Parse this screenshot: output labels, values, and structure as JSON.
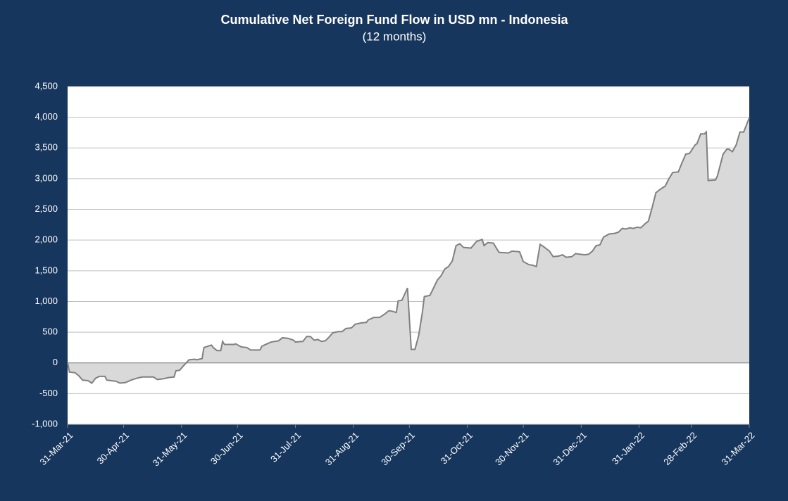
{
  "chart_data": {
    "type": "area",
    "title": "Cumulative Net Foreign Fund Flow in USD mn -  Indonesia",
    "subtitle": "(12 months)",
    "color": "#d9d9d9",
    "line_color": "#808080",
    "grid": true,
    "ylim": [
      -1000,
      4500
    ],
    "yticks": [
      {
        "value": -1000,
        "label": "-1,000"
      },
      -500,
      0,
      500,
      {
        "value": 1000,
        "label": "1,000"
      },
      {
        "value": 1500,
        "label": "1,500"
      },
      {
        "value": 2000,
        "label": "2,000"
      },
      {
        "value": 2500,
        "label": "2,500"
      },
      {
        "value": 3000,
        "label": "3,000"
      },
      {
        "value": 3500,
        "label": "3,500"
      },
      {
        "value": 4000,
        "label": "4,000"
      },
      {
        "value": 4500,
        "label": "4,500"
      }
    ],
    "xlim": [
      "31-Mar-21",
      "31-Mar-22"
    ],
    "xticks": [
      "31-Mar-21",
      "30-Apr-21",
      "31-May-21",
      "30-Jun-21",
      "31-Jul-21",
      "31-Aug-21",
      "30-Sep-21",
      "31-Oct-21",
      "30-Nov-21",
      "31-Dec-21",
      "31-Jan-22",
      "28-Feb-22",
      "31-Mar-22"
    ],
    "x": [
      "31-Mar-21",
      "1-Apr-21",
      "4-Apr-21",
      "6-Apr-21",
      "8-Apr-21",
      "11-Apr-21",
      "13-Apr-21",
      "15-Apr-21",
      "17-Apr-21",
      "20-Apr-21",
      "21-Apr-21",
      "26-Apr-21",
      "28-Apr-21",
      "1-May-21",
      "4-May-21",
      "7-May-21",
      "10-May-21",
      "16-May-21",
      "18-May-21",
      "21-May-21",
      "24-May-21",
      "27-May-21",
      "28-May-21",
      "30-May-21",
      "1-Jun-21",
      "4-Jun-21",
      "7-Jun-21",
      "8-Jun-21",
      "11-Jun-21",
      "12-Jun-21",
      "14-Jun-21",
      "16-Jun-21",
      "17-Jun-21",
      "19-Jun-21",
      "21-Jun-21",
      "22-Jun-21",
      "23-Jun-21",
      "28-Jun-21",
      "29-Jun-21",
      "2-Jul-21",
      "5-Jul-21",
      "7-Jul-21",
      "12-Jul-21",
      "13-Jul-21",
      "15-Jul-21",
      "18-Jul-21",
      "22-Jul-21",
      "24-Jul-21",
      "27-Jul-21",
      "30-Jul-21",
      "31-Jul-21",
      "4-Aug-21",
      "6-Aug-21",
      "8-Aug-21",
      "10-Aug-21",
      "12-Aug-21",
      "14-Aug-21",
      "16-Aug-21",
      "18-Aug-21",
      "20-Aug-21",
      "23-Aug-21",
      "25-Aug-21",
      "27-Aug-21",
      "30-Aug-21",
      "1-Sep-21",
      "4-Sep-21",
      "7-Sep-21",
      "8-Sep-21",
      "11-Sep-21",
      "14-Sep-21",
      "17-Sep-21",
      "19-Sep-21",
      "21-Sep-21",
      "23-Sep-21",
      "24-Sep-21",
      "26-Sep-21",
      "29-Sep-21",
      "1-Oct-21",
      "3-Oct-21",
      "5-Oct-21",
      "7-Oct-21",
      "8-Oct-21",
      "11-Oct-21",
      "12-Oct-21",
      "15-Oct-21",
      "17-Oct-21",
      "19-Oct-21",
      "21-Oct-21",
      "23-Oct-21",
      "25-Oct-21",
      "27-Oct-21",
      "29-Oct-21",
      "2-Nov-21",
      "5-Nov-21",
      "8-Nov-21",
      "9-Nov-21",
      "11-Nov-21",
      "14-Nov-21",
      "17-Nov-21",
      "22-Nov-21",
      "24-Nov-21",
      "28-Nov-21",
      "30-Nov-21",
      "3-Dec-21",
      "5-Dec-21",
      "7-Dec-21",
      "9-Dec-21",
      "11-Dec-21",
      "14-Dec-21",
      "16-Dec-21",
      "19-Dec-21",
      "21-Dec-21",
      "23-Dec-21",
      "26-Dec-21",
      "28-Dec-21",
      "30-Dec-21",
      "2-Jan-22",
      "4-Jan-22",
      "6-Jan-22",
      "8-Jan-22",
      "10-Jan-22",
      "12-Jan-22",
      "15-Jan-22",
      "18-Jan-22",
      "20-Jan-22",
      "22-Jan-22",
      "24-Jan-22",
      "26-Jan-22",
      "28-Jan-22",
      "30-Jan-22",
      "1-Feb-22",
      "3-Feb-22",
      "5-Feb-22",
      "7-Feb-22",
      "9-Feb-22",
      "11-Feb-22",
      "14-Feb-22",
      "16-Feb-22",
      "18-Feb-22",
      "21-Feb-22",
      "23-Feb-22",
      "25-Feb-22",
      "27-Feb-22",
      "2-Mar-22",
      "3-Mar-22",
      "5-Mar-22",
      "7-Mar-22",
      "8-Mar-22",
      "9-Mar-22",
      "13-Mar-22",
      "14-Mar-22",
      "17-Mar-22",
      "19-Mar-22",
      "20-Mar-22",
      "22-Mar-22",
      "24-Mar-22",
      "26-Mar-22",
      "28-Mar-22",
      "31-Mar-22"
    ],
    "values": [
      0,
      -150,
      -160,
      -210,
      -280,
      -290,
      -330,
      -250,
      -220,
      -220,
      -280,
      -300,
      -330,
      -320,
      -280,
      -250,
      -230,
      -230,
      -270,
      -260,
      -240,
      -230,
      -130,
      -120,
      -50,
      50,
      60,
      50,
      70,
      250,
      270,
      290,
      250,
      200,
      200,
      350,
      300,
      300,
      310,
      260,
      250,
      210,
      210,
      270,
      300,
      340,
      360,
      410,
      400,
      370,
      340,
      350,
      430,
      430,
      370,
      380,
      350,
      360,
      420,
      490,
      510,
      510,
      560,
      570,
      630,
      650,
      660,
      700,
      740,
      740,
      800,
      850,
      840,
      820,
      1010,
      1020,
      1220,
      220,
      220,
      450,
      830,
      1080,
      1100,
      1160,
      1350,
      1420,
      1530,
      1570,
      1660,
      1910,
      1940,
      1880,
      1870,
      1980,
      2010,
      1910,
      1960,
      1950,
      1800,
      1790,
      1820,
      1810,
      1650,
      1600,
      1590,
      1570,
      1930,
      1890,
      1820,
      1730,
      1740,
      1760,
      1720,
      1730,
      1780,
      1770,
      1760,
      1770,
      1820,
      1910,
      1920,
      2050,
      2100,
      2110,
      2130,
      2190,
      2180,
      2200,
      2190,
      2210,
      2200,
      2260,
      2310,
      2530,
      2770,
      2820,
      2880,
      3000,
      3100,
      3110,
      3260,
      3400,
      3410,
      3550,
      3570,
      3730,
      3730,
      3760,
      2970,
      2980,
      3050,
      3400,
      3480,
      3480,
      3440,
      3550,
      3760,
      3760,
      3990
    ]
  }
}
